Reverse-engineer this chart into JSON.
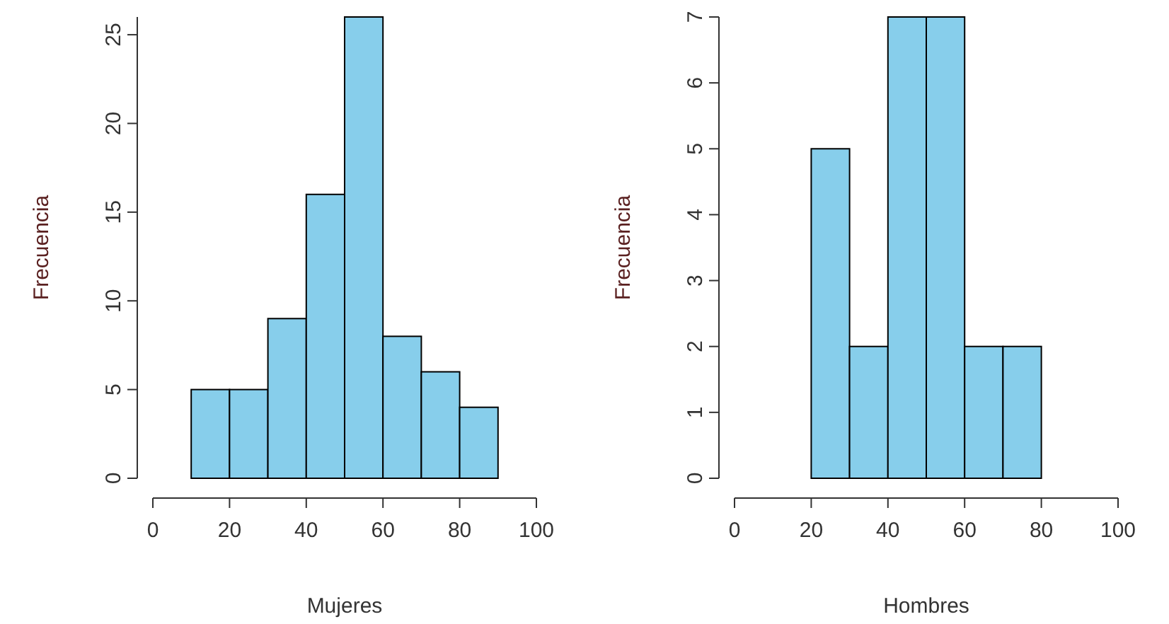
{
  "chart_data": [
    {
      "type": "histogram",
      "xlabel": "Mujeres",
      "ylabel": "Frecuencia",
      "bins": [
        10,
        20,
        30,
        40,
        50,
        60,
        70,
        80,
        90
      ],
      "values": [
        5,
        5,
        9,
        16,
        26,
        8,
        6,
        4
      ],
      "color": "#87ceeb",
      "xlim": [
        0,
        100
      ],
      "xticks": [
        0,
        20,
        40,
        60,
        80,
        100
      ],
      "ylim": [
        0,
        26
      ],
      "yticks": [
        0,
        5,
        10,
        15,
        20,
        25
      ],
      "grid": false
    },
    {
      "type": "histogram",
      "xlabel": "Hombres",
      "ylabel": "Frecuencia",
      "bins": [
        20,
        30,
        40,
        50,
        60,
        70,
        80
      ],
      "values": [
        5,
        2,
        7,
        7,
        2,
        2
      ],
      "color": "#87ceeb",
      "xlim": [
        0,
        100
      ],
      "xticks": [
        0,
        20,
        40,
        60,
        80,
        100
      ],
      "ylim": [
        0,
        7
      ],
      "yticks": [
        0,
        1,
        2,
        3,
        4,
        5,
        6,
        7
      ],
      "grid": false
    }
  ]
}
